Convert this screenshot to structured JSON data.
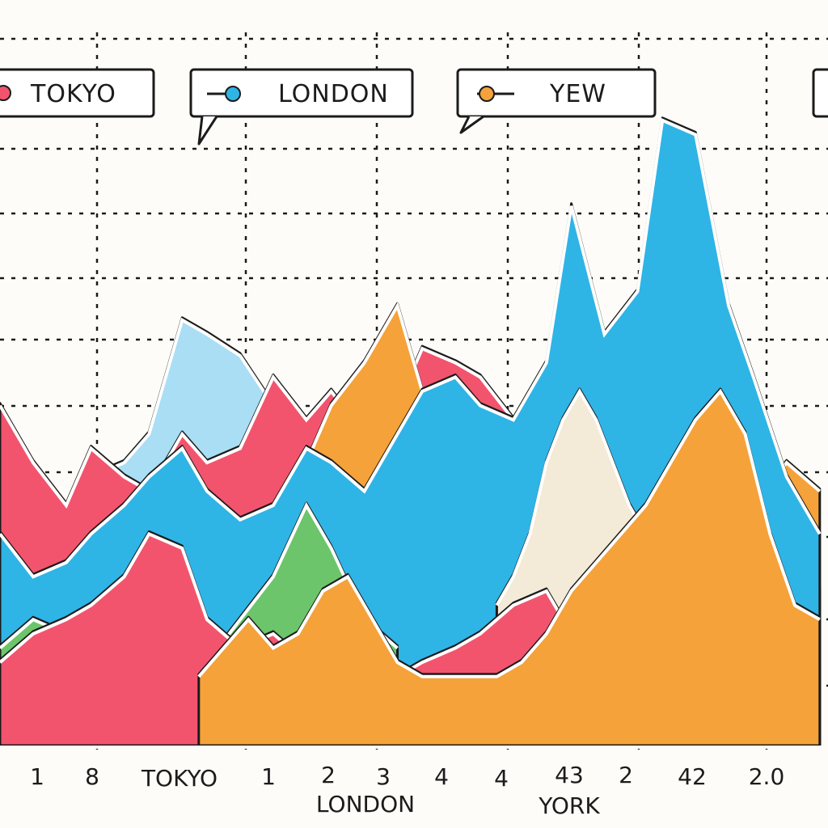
{
  "chart_data": {
    "type": "area",
    "title": "",
    "xlabel": "",
    "ylabel": "",
    "grid": true,
    "legend_position": "top",
    "legend": [
      {
        "label": "TOKYO",
        "color": "#f2546e"
      },
      {
        "label": "LONDON",
        "color": "#2fb4e6"
      },
      {
        "label": "YEW",
        "color": "#f5a23a"
      }
    ],
    "x_tick_labels": [
      "1",
      "8",
      "TOKYO",
      "1",
      "2",
      "3",
      "4",
      "4",
      "43",
      "2",
      "42",
      "2.0"
    ],
    "x_group_labels": [
      "LONDON",
      "YORK"
    ],
    "series_colors": {
      "pink": "#f2546e",
      "blue": "#2fb4e6",
      "light_blue": "#a9def4",
      "orange": "#f5a23a",
      "green": "#6cc56a",
      "cream": "#f3ead7"
    },
    "series": [
      {
        "color": "#a9def4",
        "x": [
          0,
          4,
          8,
          11,
          15,
          18,
          22,
          25,
          29,
          33,
          37,
          40,
          44,
          48,
          51,
          55,
          58,
          62,
          66,
          69,
          73,
          77,
          80,
          84,
          88,
          91,
          95,
          99
        ],
        "values": [
          22,
          28,
          24,
          38,
          40,
          44,
          60,
          58,
          55,
          48,
          42,
          40,
          35,
          38,
          36,
          34,
          30,
          32,
          28,
          26,
          30,
          35,
          40,
          44,
          36,
          30,
          26,
          22
        ]
      },
      {
        "color": "#f2546e",
        "x": [
          0,
          4,
          8,
          11,
          15,
          18,
          22,
          25,
          29,
          33,
          37,
          40,
          44,
          48,
          51,
          55,
          58,
          62,
          66,
          69,
          73,
          77,
          80,
          84,
          88,
          91,
          95,
          99
        ],
        "values": [
          48,
          40,
          34,
          42,
          38,
          36,
          44,
          40,
          42,
          52,
          46,
          50,
          44,
          48,
          56,
          54,
          52,
          46,
          40,
          30,
          26,
          24,
          22,
          20,
          18,
          16,
          14,
          12
        ]
      },
      {
        "color": "#f5a23a",
        "x": [
          0,
          4,
          8,
          11,
          15,
          18,
          22,
          25,
          29,
          33,
          37,
          40,
          44,
          48,
          51,
          55,
          58,
          62,
          66,
          69,
          73,
          77,
          80,
          84,
          88,
          91,
          95,
          99
        ],
        "values": [
          8,
          8,
          8,
          8,
          8,
          8,
          10,
          12,
          14,
          16,
          40,
          48,
          54,
          62,
          50,
          44,
          36,
          30,
          26,
          22,
          20,
          18,
          16,
          14,
          36,
          34,
          40,
          36
        ]
      },
      {
        "color": "#2fb4e6",
        "x": [
          0,
          4,
          8,
          11,
          15,
          18,
          22,
          25,
          29,
          33,
          37,
          40,
          44,
          48,
          51,
          55,
          58,
          62,
          66,
          69,
          73,
          77,
          80,
          84,
          88,
          91,
          95,
          99
        ],
        "values": [
          30,
          24,
          26,
          30,
          34,
          38,
          42,
          36,
          32,
          34,
          42,
          40,
          36,
          44,
          50,
          52,
          48,
          46,
          54,
          76,
          58,
          64,
          88,
          86,
          62,
          52,
          38,
          30
        ]
      },
      {
        "color": "#f3ead7",
        "x": [
          60,
          62,
          64,
          66,
          68,
          70,
          72,
          74,
          76,
          78,
          80
        ],
        "values": [
          20,
          24,
          30,
          40,
          46,
          50,
          46,
          40,
          34,
          30,
          26
        ]
      },
      {
        "color": "#6cc56a",
        "x": [
          0,
          4,
          8,
          11,
          15,
          18,
          22,
          25,
          29,
          33,
          37,
          40,
          44,
          48
        ],
        "values": [
          14,
          18,
          16,
          20,
          12,
          10,
          10,
          12,
          18,
          24,
          34,
          28,
          18,
          14
        ]
      },
      {
        "color": "#f2546e",
        "x": [
          0,
          4,
          8,
          11,
          15,
          18,
          22,
          25,
          29,
          33,
          37,
          40,
          44,
          48,
          51,
          55,
          58,
          62,
          66,
          69,
          73,
          77,
          80,
          84,
          88,
          91,
          95,
          99
        ],
        "values": [
          12,
          16,
          18,
          20,
          24,
          30,
          28,
          18,
          14,
          16,
          12,
          12,
          10,
          10,
          12,
          14,
          16,
          20,
          22,
          16,
          14,
          12,
          12,
          12,
          14,
          12,
          12,
          10
        ]
      },
      {
        "color": "#f5a23a",
        "x": [
          24,
          27,
          30,
          33,
          36,
          39,
          42,
          45,
          48,
          51,
          54,
          57,
          60,
          63,
          66,
          69,
          72,
          75,
          78,
          81,
          84,
          87,
          90,
          93,
          96,
          99
        ],
        "values": [
          10,
          14,
          18,
          14,
          16,
          22,
          24,
          18,
          12,
          10,
          10,
          10,
          10,
          12,
          16,
          22,
          26,
          30,
          34,
          40,
          46,
          50,
          44,
          30,
          20,
          18
        ]
      }
    ],
    "xlim": [
      0,
      100
    ],
    "ylim": [
      0,
      100
    ]
  }
}
